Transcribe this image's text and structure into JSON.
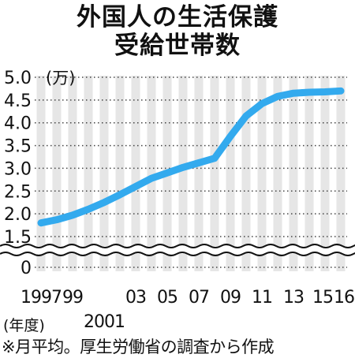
{
  "title_lines": [
    "外国人の生活保護",
    "受給世帯数"
  ],
  "year_unit": "(年度)",
  "source_note": "※月平均。厚生労働省の調査から作成",
  "y_unit": "(万)",
  "colors": {
    "line": "#33aaee",
    "stripe": "#e6e6e6",
    "text": "#111111",
    "dots": "#444444"
  },
  "chart_data": {
    "type": "line",
    "title": "外国人の生活保護受給世帯数",
    "xlabel": "(年度)",
    "ylabel": "(万)",
    "x": [
      1997,
      1998,
      1999,
      2000,
      2001,
      2002,
      2003,
      2004,
      2005,
      2006,
      2007,
      2008,
      2009,
      2010,
      2011,
      2012,
      2013,
      2014,
      2015,
      2016
    ],
    "series": [
      {
        "values": [
          1.8,
          1.87,
          1.97,
          2.1,
          2.25,
          2.42,
          2.6,
          2.78,
          2.9,
          3.02,
          3.12,
          3.22,
          3.7,
          4.15,
          4.42,
          4.58,
          4.65,
          4.67,
          4.68,
          4.7
        ]
      }
    ],
    "ylim": [
      0,
      5.0
    ],
    "axis_break": [
      0.5,
      1.5
    ],
    "y_ticks": [
      "5.0",
      "4.5",
      "4.0",
      "3.5",
      "3.0",
      "2.5",
      "2.0",
      "1.5",
      "0"
    ],
    "x_tick_labels": [
      {
        "year": 1997,
        "label": "1997",
        "row": 0
      },
      {
        "year": 1999,
        "label": "99",
        "row": 0
      },
      {
        "year": 2001,
        "label": "2001",
        "row": 1
      },
      {
        "year": 2003,
        "label": "03",
        "row": 0
      },
      {
        "year": 2005,
        "label": "05",
        "row": 0
      },
      {
        "year": 2007,
        "label": "07",
        "row": 0
      },
      {
        "year": 2009,
        "label": "09",
        "row": 0
      },
      {
        "year": 2011,
        "label": "11",
        "row": 0
      },
      {
        "year": 2013,
        "label": "13",
        "row": 0
      },
      {
        "year": 2015,
        "label": "15",
        "row": 0
      },
      {
        "year": 2016,
        "label": "16",
        "row": 0
      }
    ],
    "grid": "dotted-horizontal",
    "legend": "none"
  }
}
